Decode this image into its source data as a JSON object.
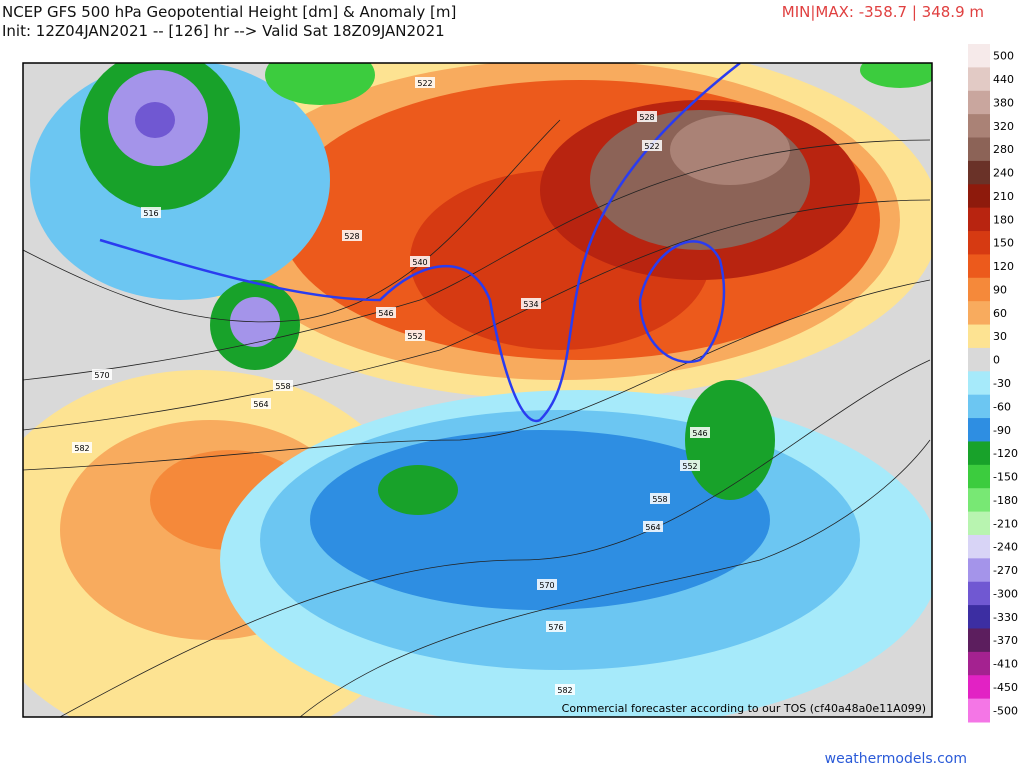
{
  "header": {
    "title": "NCEP GFS 500 hPa Geopotential Height [dm] & Anomaly [m]",
    "init": "Init: 12Z04JAN2021 -- [126] hr --> Valid Sat 18Z09JAN2021",
    "minmax": "MIN|MAX: -358.7 | 348.9 m"
  },
  "colorbar": [
    {
      "label": 500,
      "color": "#f6eaea"
    },
    {
      "label": 440,
      "color": "#e2cac5"
    },
    {
      "label": 380,
      "color": "#c9a69e"
    },
    {
      "label": 320,
      "color": "#aa8276"
    },
    {
      "label": 280,
      "color": "#8c6357"
    },
    {
      "label": 240,
      "color": "#6a3228"
    },
    {
      "label": 210,
      "color": "#8e1a0c"
    },
    {
      "label": 180,
      "color": "#b82410"
    },
    {
      "label": 150,
      "color": "#d63a12"
    },
    {
      "label": 120,
      "color": "#ec5a1c"
    },
    {
      "label": 90,
      "color": "#f5893a"
    },
    {
      "label": 60,
      "color": "#f8ab5e"
    },
    {
      "label": 30,
      "color": "#fde392"
    },
    {
      "label": 0,
      "color": "#d9d9d9"
    },
    {
      "label": -30,
      "color": "#a6eafa"
    },
    {
      "label": -60,
      "color": "#6cc6f2"
    },
    {
      "label": -90,
      "color": "#2e8ee2"
    },
    {
      "label": -120,
      "color": "#18a22a"
    },
    {
      "label": -150,
      "color": "#3ccc3e"
    },
    {
      "label": -180,
      "color": "#78e874"
    },
    {
      "label": -210,
      "color": "#b8f4b0"
    },
    {
      "label": -240,
      "color": "#d8d4f6"
    },
    {
      "label": -270,
      "color": "#a494ea"
    },
    {
      "label": -300,
      "color": "#7058d2"
    },
    {
      "label": -330,
      "color": "#3c2ea2"
    },
    {
      "label": -370,
      "color": "#5c1e5e"
    },
    {
      "label": -410,
      "color": "#a42290"
    },
    {
      "label": -450,
      "color": "#e222c4"
    },
    {
      "label": -500,
      "color": "#f476e6"
    }
  ],
  "contour_labels": [
    522,
    528,
    522,
    516,
    528,
    540,
    546,
    552,
    534,
    558,
    564,
    570,
    582,
    546,
    552,
    558,
    564,
    570,
    576,
    582
  ],
  "footer": "Commercial forecaster according to our TOS (cf40a48a0e11A099)",
  "watermark": "weathermodels.com"
}
